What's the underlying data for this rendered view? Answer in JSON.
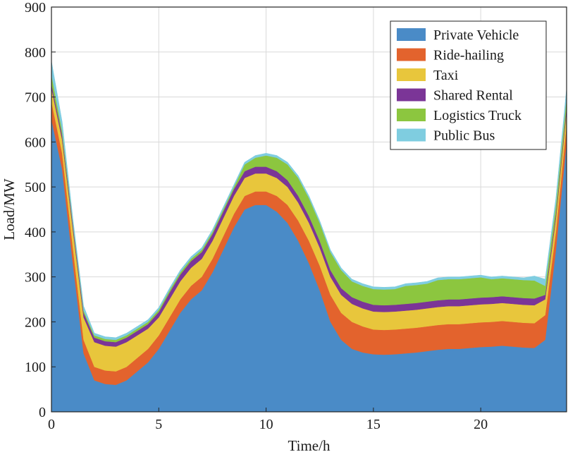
{
  "chart_data": {
    "type": "area",
    "stacked": true,
    "xlabel": "Time/h",
    "ylabel": "Load/MW",
    "xlim": [
      0,
      24
    ],
    "ylim": [
      0,
      900
    ],
    "xticks": [
      0,
      5,
      10,
      15,
      20
    ],
    "yticks": [
      0,
      100,
      200,
      300,
      400,
      500,
      600,
      700,
      800,
      900
    ],
    "grid": true,
    "legend_position": "top-right",
    "x": [
      0,
      0.5,
      1,
      1.5,
      2,
      2.5,
      3,
      3.5,
      4,
      4.5,
      5,
      5.5,
      6,
      6.5,
      7,
      7.5,
      8,
      8.5,
      9,
      9.5,
      10,
      10.5,
      11,
      11.5,
      12,
      12.5,
      13,
      13.5,
      14,
      14.5,
      15,
      15.5,
      16,
      16.5,
      17,
      17.5,
      18,
      18.5,
      19,
      19.5,
      20,
      20.5,
      21,
      21.5,
      22,
      22.5,
      23,
      23.5,
      24
    ],
    "series": [
      {
        "name": "Private Vehicle",
        "color": "#4a8bc7",
        "values": [
          650,
          540,
          330,
          130,
          70,
          62,
          60,
          70,
          90,
          110,
          140,
          180,
          220,
          250,
          270,
          310,
          360,
          410,
          450,
          460,
          460,
          445,
          420,
          380,
          330,
          270,
          200,
          160,
          140,
          132,
          128,
          127,
          128,
          130,
          132,
          135,
          138,
          140,
          140,
          142,
          144,
          145,
          147,
          145,
          143,
          142,
          160,
          360,
          600
        ]
      },
      {
        "name": "Ride-hailing",
        "color": "#e3632d",
        "values": [
          40,
          35,
          35,
          30,
          30,
          30,
          30,
          30,
          30,
          30,
          30,
          30,
          30,
          30,
          30,
          30,
          30,
          30,
          30,
          30,
          30,
          35,
          40,
          45,
          50,
          55,
          60,
          60,
          60,
          58,
          55,
          55,
          55,
          55,
          55,
          55,
          55,
          55,
          55,
          55,
          55,
          55,
          55,
          55,
          55,
          55,
          55,
          40,
          40
        ]
      },
      {
        "name": "Taxi",
        "color": "#e8c63c",
        "values": [
          30,
          30,
          40,
          50,
          55,
          55,
          55,
          55,
          50,
          45,
          40,
          40,
          40,
          40,
          40,
          40,
          40,
          40,
          40,
          40,
          40,
          40,
          40,
          40,
          40,
          40,
          40,
          40,
          40,
          40,
          40,
          40,
          40,
          40,
          40,
          40,
          40,
          40,
          40,
          40,
          40,
          40,
          40,
          40,
          40,
          40,
          35,
          30,
          30
        ]
      },
      {
        "name": "Shared Rental",
        "color": "#7b3597",
        "values": [
          10,
          10,
          10,
          10,
          10,
          10,
          10,
          10,
          10,
          10,
          12,
          15,
          15,
          15,
          15,
          15,
          15,
          15,
          15,
          15,
          15,
          15,
          15,
          15,
          15,
          15,
          15,
          15,
          15,
          15,
          15,
          15,
          15,
          15,
          15,
          15,
          15,
          15,
          15,
          15,
          15,
          15,
          15,
          15,
          15,
          15,
          10,
          10,
          10
        ]
      },
      {
        "name": "Logistics Truck",
        "color": "#8cc63f",
        "values": [
          20,
          10,
          5,
          5,
          5,
          5,
          5,
          5,
          5,
          5,
          5,
          5,
          5,
          5,
          5,
          5,
          5,
          5,
          15,
          20,
          25,
          30,
          35,
          40,
          40,
          40,
          40,
          40,
          35,
          35,
          35,
          35,
          35,
          40,
          40,
          40,
          45,
          45,
          45,
          45,
          45,
          40,
          40,
          40,
          40,
          40,
          20,
          20,
          20
        ]
      },
      {
        "name": "Public Bus",
        "color": "#7fcde0",
        "values": [
          30,
          20,
          10,
          10,
          5,
          5,
          5,
          5,
          5,
          5,
          5,
          5,
          5,
          5,
          5,
          5,
          5,
          5,
          5,
          5,
          5,
          5,
          5,
          5,
          5,
          5,
          5,
          5,
          5,
          5,
          5,
          5,
          5,
          5,
          5,
          5,
          5,
          5,
          5,
          5,
          5,
          5,
          5,
          5,
          5,
          10,
          15,
          15,
          20
        ]
      }
    ]
  }
}
